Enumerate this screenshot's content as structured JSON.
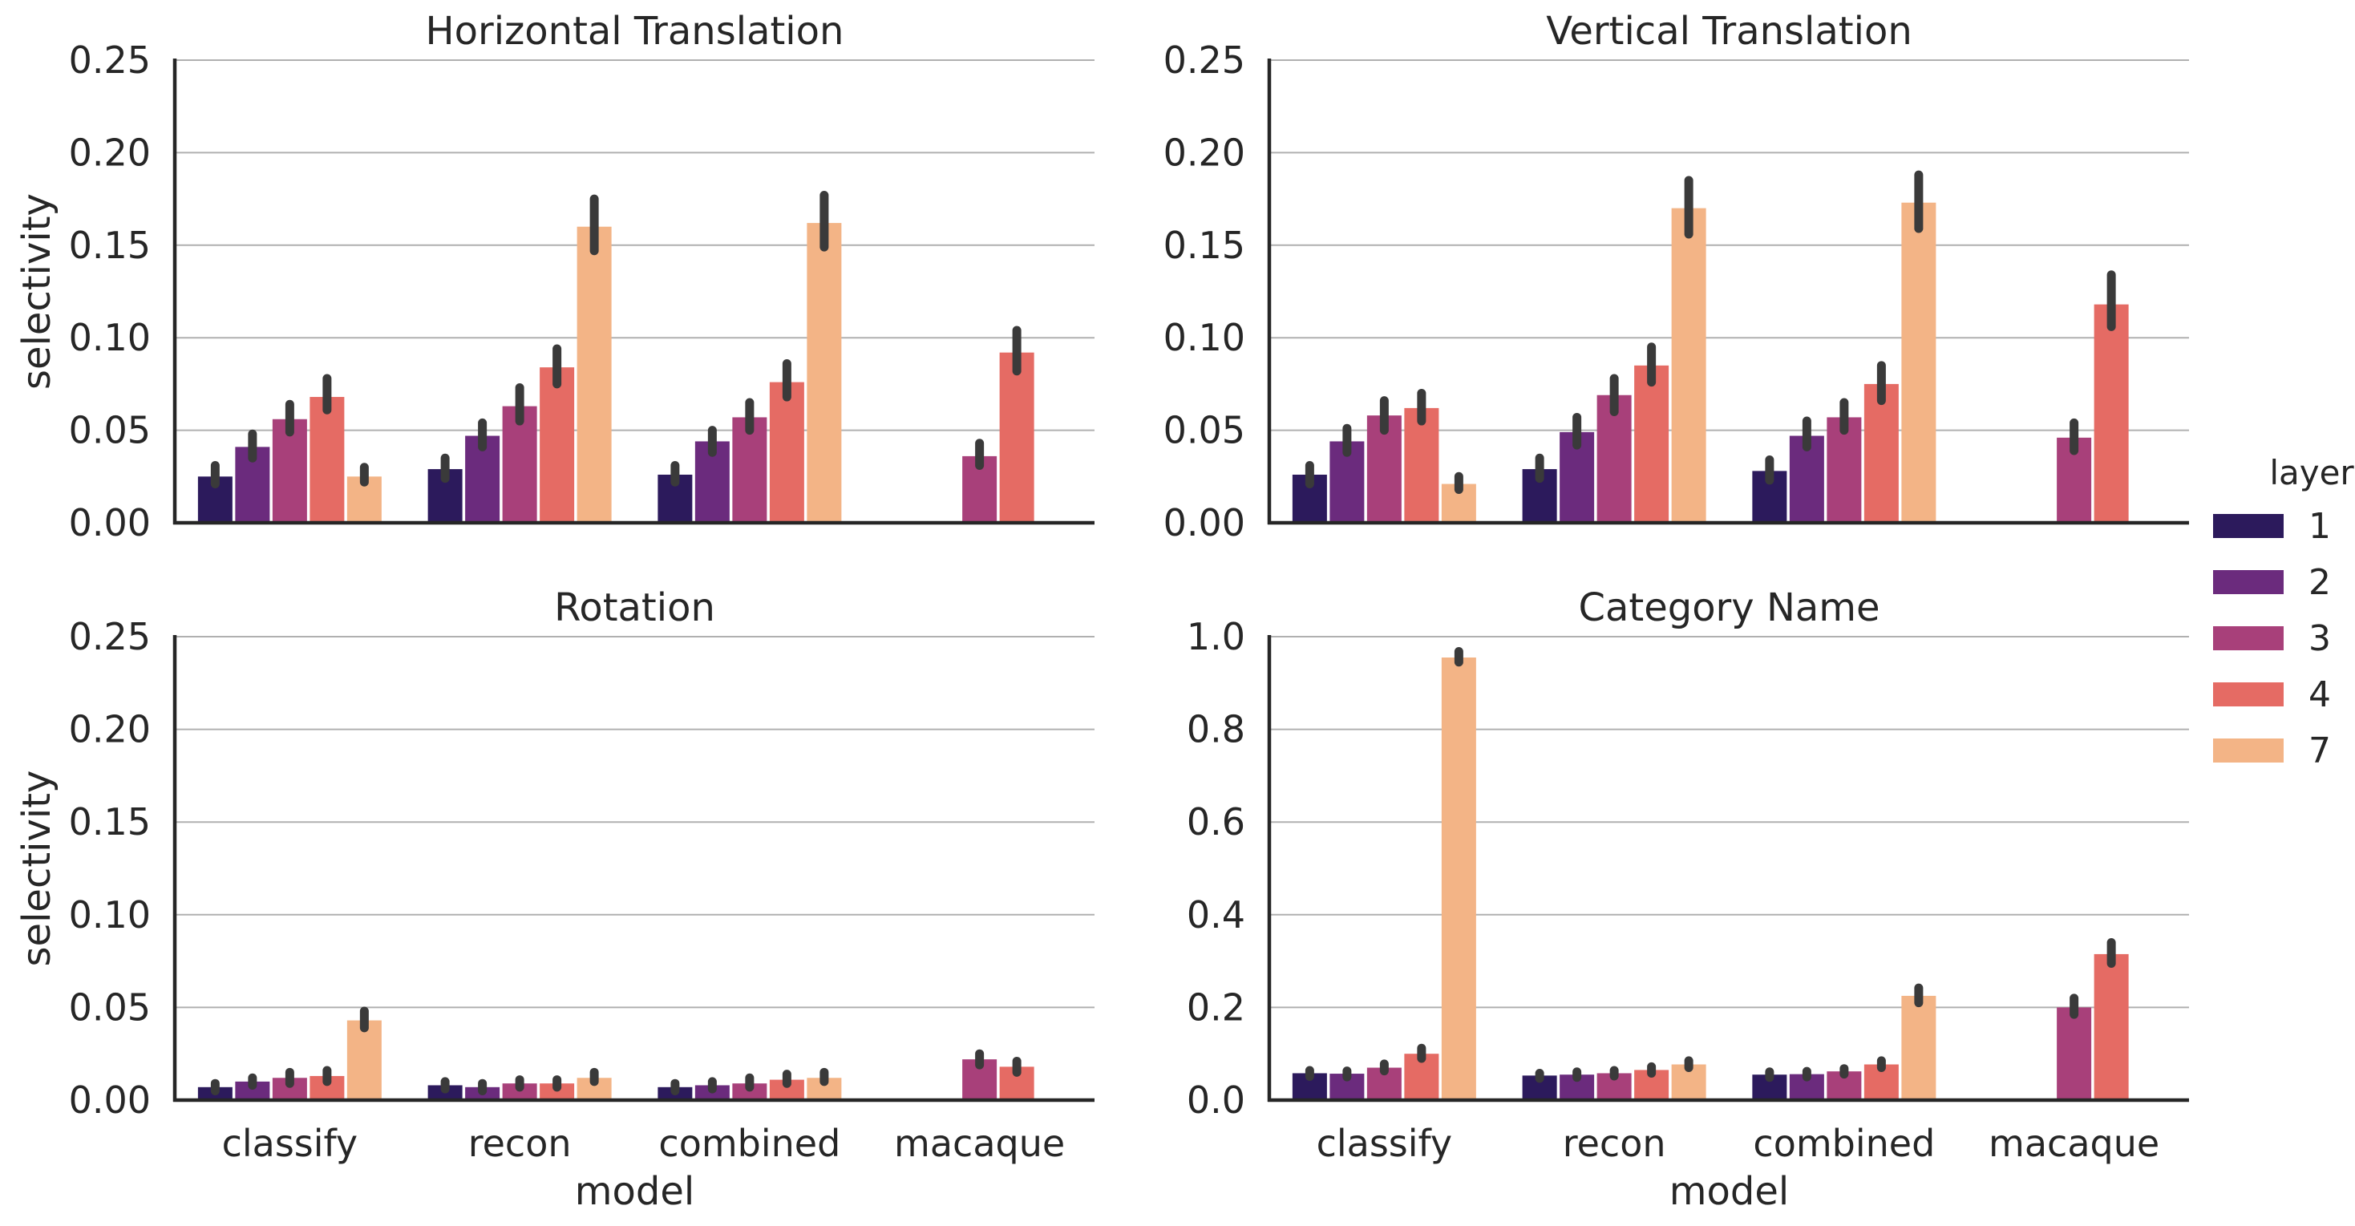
{
  "chart_data": {
    "type": "bar",
    "categories": [
      "classify",
      "recon",
      "combined",
      "macaque"
    ],
    "xlabel": "model",
    "ylabel": "selectivity",
    "legend": {
      "title": "layer",
      "entries": [
        "1",
        "2",
        "3",
        "4",
        "7"
      ],
      "colors": [
        "#2c1a5c",
        "#6b2b7d",
        "#a8407a",
        "#e56b64",
        "#f3b486"
      ],
      "placement": "right"
    },
    "grid": "horizontal",
    "panels": [
      {
        "title": "Horizontal Translation",
        "ylim": [
          0,
          0.25
        ],
        "yticks": [
          "0.00",
          "0.05",
          "0.10",
          "0.15",
          "0.20",
          "0.25"
        ],
        "show_xticklabels": false,
        "show_xlabel": false,
        "show_ylabel": true,
        "series": [
          {
            "name": "1",
            "values": [
              0.025,
              0.029,
              0.026,
              null
            ],
            "err_low": [
              0.021,
              0.024,
              0.022,
              null
            ],
            "err_high": [
              0.031,
              0.035,
              0.031,
              null
            ]
          },
          {
            "name": "2",
            "values": [
              0.041,
              0.047,
              0.044,
              null
            ],
            "err_low": [
              0.035,
              0.041,
              0.038,
              null
            ],
            "err_high": [
              0.048,
              0.054,
              0.05,
              null
            ]
          },
          {
            "name": "3",
            "values": [
              0.056,
              0.063,
              0.057,
              0.036
            ],
            "err_low": [
              0.049,
              0.055,
              0.05,
              0.031
            ],
            "err_high": [
              0.064,
              0.073,
              0.065,
              0.043
            ]
          },
          {
            "name": "4",
            "values": [
              0.068,
              0.084,
              0.076,
              0.092
            ],
            "err_low": [
              0.061,
              0.075,
              0.068,
              0.082
            ],
            "err_high": [
              0.078,
              0.094,
              0.086,
              0.104
            ]
          },
          {
            "name": "7",
            "values": [
              0.025,
              0.16,
              0.162,
              null
            ],
            "err_low": [
              0.022,
              0.147,
              0.149,
              null
            ],
            "err_high": [
              0.03,
              0.175,
              0.177,
              null
            ]
          }
        ]
      },
      {
        "title": "Vertical Translation",
        "ylim": [
          0,
          0.25
        ],
        "yticks": [
          "0.00",
          "0.05",
          "0.10",
          "0.15",
          "0.20",
          "0.25"
        ],
        "show_xticklabels": false,
        "show_xlabel": false,
        "show_ylabel": false,
        "series": [
          {
            "name": "1",
            "values": [
              0.026,
              0.029,
              0.028,
              null
            ],
            "err_low": [
              0.021,
              0.024,
              0.023,
              null
            ],
            "err_high": [
              0.031,
              0.035,
              0.034,
              null
            ]
          },
          {
            "name": "2",
            "values": [
              0.044,
              0.049,
              0.047,
              null
            ],
            "err_low": [
              0.038,
              0.042,
              0.041,
              null
            ],
            "err_high": [
              0.051,
              0.057,
              0.055,
              null
            ]
          },
          {
            "name": "3",
            "values": [
              0.058,
              0.069,
              0.057,
              0.046
            ],
            "err_low": [
              0.05,
              0.06,
              0.05,
              0.039
            ],
            "err_high": [
              0.066,
              0.078,
              0.065,
              0.054
            ]
          },
          {
            "name": "4",
            "values": [
              0.062,
              0.085,
              0.075,
              0.118
            ],
            "err_low": [
              0.055,
              0.076,
              0.066,
              0.106
            ],
            "err_high": [
              0.07,
              0.095,
              0.085,
              0.134
            ]
          },
          {
            "name": "7",
            "values": [
              0.021,
              0.17,
              0.173,
              null
            ],
            "err_low": [
              0.018,
              0.156,
              0.159,
              null
            ],
            "err_high": [
              0.025,
              0.185,
              0.188,
              null
            ]
          }
        ]
      },
      {
        "title": "Rotation",
        "ylim": [
          0,
          0.25
        ],
        "yticks": [
          "0.00",
          "0.05",
          "0.10",
          "0.15",
          "0.20",
          "0.25"
        ],
        "show_xticklabels": true,
        "show_xlabel": true,
        "show_ylabel": true,
        "series": [
          {
            "name": "1",
            "values": [
              0.007,
              0.008,
              0.007,
              null
            ],
            "err_low": [
              0.005,
              0.006,
              0.005,
              null
            ],
            "err_high": [
              0.009,
              0.01,
              0.009,
              null
            ]
          },
          {
            "name": "2",
            "values": [
              0.01,
              0.007,
              0.008,
              null
            ],
            "err_low": [
              0.008,
              0.005,
              0.006,
              null
            ],
            "err_high": [
              0.012,
              0.009,
              0.01,
              null
            ]
          },
          {
            "name": "3",
            "values": [
              0.012,
              0.009,
              0.009,
              0.022
            ],
            "err_low": [
              0.009,
              0.007,
              0.007,
              0.019
            ],
            "err_high": [
              0.015,
              0.011,
              0.012,
              0.025
            ]
          },
          {
            "name": "4",
            "values": [
              0.013,
              0.009,
              0.011,
              0.018
            ],
            "err_low": [
              0.01,
              0.007,
              0.009,
              0.015
            ],
            "err_high": [
              0.016,
              0.011,
              0.014,
              0.021
            ]
          },
          {
            "name": "7",
            "values": [
              0.043,
              0.012,
              0.012,
              null
            ],
            "err_low": [
              0.039,
              0.01,
              0.01,
              null
            ],
            "err_high": [
              0.048,
              0.015,
              0.015,
              null
            ]
          }
        ]
      },
      {
        "title": "Category Name",
        "ylim": [
          0,
          1.0
        ],
        "yticks": [
          "0.0",
          "0.2",
          "0.4",
          "0.6",
          "0.8",
          "1.0"
        ],
        "show_xticklabels": true,
        "show_xlabel": true,
        "show_ylabel": false,
        "series": [
          {
            "name": "1",
            "values": [
              0.058,
              0.053,
              0.055,
              null
            ],
            "err_low": [
              0.051,
              0.047,
              0.049,
              null
            ],
            "err_high": [
              0.064,
              0.058,
              0.061,
              null
            ]
          },
          {
            "name": "2",
            "values": [
              0.057,
              0.055,
              0.056,
              null
            ],
            "err_low": [
              0.05,
              0.049,
              0.05,
              null
            ],
            "err_high": [
              0.063,
              0.061,
              0.062,
              null
            ]
          },
          {
            "name": "3",
            "values": [
              0.07,
              0.058,
              0.062,
              0.2
            ],
            "err_low": [
              0.063,
              0.052,
              0.056,
              0.185
            ],
            "err_high": [
              0.078,
              0.064,
              0.068,
              0.22
            ]
          },
          {
            "name": "4",
            "values": [
              0.1,
              0.065,
              0.077,
              0.315
            ],
            "err_low": [
              0.09,
              0.058,
              0.07,
              0.295
            ],
            "err_high": [
              0.112,
              0.072,
              0.085,
              0.34
            ]
          },
          {
            "name": "7",
            "values": [
              0.955,
              0.077,
              0.225,
              null
            ],
            "err_low": [
              0.945,
              0.07,
              0.21,
              null
            ],
            "err_high": [
              0.968,
              0.085,
              0.242,
              null
            ]
          }
        ]
      }
    ]
  }
}
